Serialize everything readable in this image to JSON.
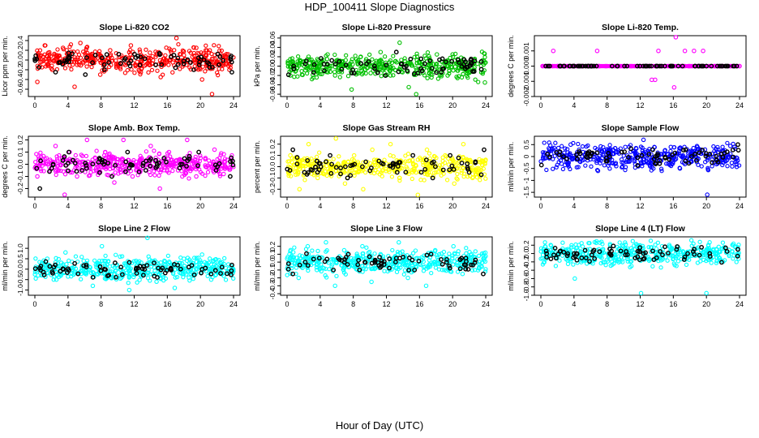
{
  "page": {
    "title": "HDP_100411  Slope Diagnostics",
    "xlabel": "Hour of Day (UTC)"
  },
  "chart_data": [
    {
      "type": "scatter",
      "title": "Slope Li-820 CO2",
      "ylabel": "Licor ppm per min.",
      "xlim": [
        0,
        24
      ],
      "xticks": [
        0,
        4,
        8,
        12,
        16,
        20,
        24
      ],
      "ylim": [
        -0.75,
        0.5
      ],
      "yticks": [
        -0.6,
        -0.4,
        -0.2,
        0.0,
        0.2,
        0.4
      ],
      "ytick_labels": [
        "-0.6",
        "-0.4",
        "-0.2",
        "0.0",
        "0.2",
        "0.4"
      ],
      "color": "#ff0000",
      "series": [
        {
          "color": "#ff0000",
          "x": [
            0.3,
            1.2,
            2.1,
            3.4,
            4.8,
            5.5,
            6.7,
            7.9,
            9.1,
            10.3,
            11.6,
            12.8,
            13.9,
            15.2,
            16.4,
            17.1,
            18.3,
            19.5,
            20.2,
            21.4,
            22.6,
            23.5
          ],
          "y": [
            -0.45,
            0.3,
            -0.2,
            0.25,
            -0.55,
            0.35,
            0.1,
            -0.3,
            0.2,
            -0.15,
            0.3,
            -0.25,
            0.15,
            -0.35,
            0.2,
            0.45,
            -0.1,
            0.25,
            -0.4,
            -0.7,
            0.1,
            -0.2
          ]
        },
        {
          "x": [
            0.5,
            2.5,
            4.2,
            6.1,
            8.4,
            10.8,
            12.2,
            14.6,
            16.8,
            19.2,
            21.1,
            23.8
          ],
          "y": [
            -0.15,
            -0.25,
            0.05,
            -0.3,
            -0.2,
            0.0,
            0.05,
            -0.1,
            0.1,
            -0.2,
            -0.15,
            -0.25
          ],
          "color": "#000000"
        }
      ]
    },
    {
      "type": "scatter",
      "title": "Slope Li-820 Pressure",
      "ylabel": "kPa per min.",
      "xlim": [
        0,
        24
      ],
      "xticks": [
        0,
        4,
        8,
        12,
        16,
        20,
        24
      ],
      "ylim": [
        -0.065,
        0.065
      ],
      "yticks": [
        -0.06,
        -0.04,
        -0.02,
        0.0,
        0.02,
        0.04,
        0.06
      ],
      "ytick_labels": [
        "-0.06",
        "-0.04",
        "-0.02",
        "0.00",
        "0.02",
        "0.04",
        "0.06"
      ],
      "color": "#00c000",
      "series": [
        {
          "color": "#00c000",
          "x": [
            0.4,
            1.3,
            2.6,
            3.7,
            4.9,
            5.8,
            6.6,
            7.8,
            8.9,
            10.1,
            11.3,
            12.5,
            13.6,
            14.7,
            15.6,
            16.9,
            18.1,
            19.4,
            20.6,
            21.8,
            23.0,
            23.9
          ],
          "y": [
            -0.02,
            0.01,
            0.02,
            -0.01,
            0.025,
            -0.02,
            0.01,
            -0.05,
            0.02,
            -0.015,
            0.03,
            -0.02,
            0.05,
            -0.045,
            -0.06,
            0.01,
            0.025,
            -0.02,
            0.015,
            -0.01,
            0.005,
            -0.035
          ]
        },
        {
          "x": [
            0.8,
            2.2,
            4.5,
            6.3,
            8.1,
            9.6,
            11.9,
            13.2,
            14.4,
            17.5,
            19.9,
            22.3
          ],
          "y": [
            0.0,
            0.005,
            -0.01,
            0.01,
            -0.015,
            0.005,
            -0.02,
            0.03,
            0.0,
            -0.005,
            0.01,
            0.005
          ],
          "color": "#000000"
        }
      ]
    },
    {
      "type": "scatter",
      "title": "Slope Li-820 Temp.",
      "ylabel": "degrees C per min.",
      "xlim": [
        0,
        24
      ],
      "xticks": [
        0,
        4,
        8,
        12,
        16,
        20,
        24
      ],
      "ylim": [
        -0.002,
        0.002
      ],
      "yticks": [
        -0.002,
        -0.001,
        0.0,
        0.001
      ],
      "ytick_labels": [
        "-0.002",
        "-0.001",
        "0.000",
        "0.001"
      ],
      "color": "#ff00ff",
      "series": [
        {
          "color": "#ff00ff",
          "x": [
            0.2,
            1.0,
            2.0,
            3.0,
            4.0,
            5.0,
            6.0,
            7.0,
            8.0,
            9.0,
            10.0,
            11.0,
            12.0,
            13.0,
            14.0,
            15.0,
            16.0,
            17.0,
            18.0,
            19.0,
            20.0,
            21.0,
            22.0,
            23.0,
            24.0,
            1.5,
            6.8,
            14.2,
            16.3,
            17.4,
            18.5,
            19.6,
            13.4,
            13.8,
            16.1
          ],
          "y": [
            0,
            0,
            0,
            0,
            0,
            0,
            0,
            0,
            0,
            0,
            0,
            0,
            0,
            0,
            0,
            0,
            0,
            0,
            0,
            0,
            0,
            0,
            0,
            0,
            0,
            0.001,
            0.001,
            0.001,
            0.0019,
            0.001,
            0.001,
            0.001,
            -0.0009,
            -0.0009,
            -0.0014
          ]
        },
        {
          "x": [
            0.6,
            2.4,
            4.6,
            6.4,
            8.6,
            10.4,
            12.6,
            14.6,
            16.6,
            18.6,
            20.6,
            22.6
          ],
          "y": [
            0,
            0,
            0,
            0,
            0,
            0,
            0,
            0,
            0,
            0,
            0,
            0
          ],
          "color": "#000000"
        }
      ]
    },
    {
      "type": "scatter",
      "title": "Slope Amb. Box Temp.",
      "ylabel": "degrees C per min.",
      "xlim": [
        0,
        24
      ],
      "xticks": [
        0,
        4,
        8,
        12,
        16,
        20,
        24
      ],
      "ylim": [
        -0.27,
        0.23
      ],
      "yticks": [
        -0.2,
        -0.1,
        0.0,
        0.1,
        0.2
      ],
      "ytick_labels": [
        "-0.2",
        "-0.1",
        "0.0",
        "0.1",
        "0.2"
      ],
      "color": "#ff00ff",
      "series": [
        {
          "color": "#ff00ff",
          "x": [
            0.3,
            1.4,
            2.5,
            3.6,
            4.2,
            5.1,
            6.3,
            7.4,
            8.5,
            9.6,
            10.7,
            11.8,
            12.9,
            14.0,
            15.1,
            16.2,
            17.3,
            18.4,
            19.5,
            20.6,
            21.7,
            22.8,
            23.7
          ],
          "y": [
            -0.1,
            0.05,
            0.15,
            -0.25,
            0.1,
            -0.1,
            0.2,
            -0.05,
            0.1,
            -0.15,
            0.2,
            -0.1,
            0.05,
            0.15,
            -0.2,
            0.1,
            -0.05,
            0.2,
            -0.1,
            0.05,
            0.12,
            -0.08,
            0.05
          ]
        },
        {
          "x": [
            0.6,
            2.2,
            4.1,
            5.7,
            7.8,
            9.3,
            11.2,
            13.4,
            15.6,
            17.8,
            19.8,
            21.9,
            23.6
          ],
          "y": [
            -0.2,
            0.0,
            0.1,
            -0.05,
            0.05,
            -0.1,
            0.1,
            -0.05,
            0.05,
            0.0,
            0.1,
            -0.05,
            -0.1
          ],
          "color": "#000000"
        }
      ]
    },
    {
      "type": "scatter",
      "title": "Slope Gas Stream RH",
      "ylabel": "percent per min.",
      "xlim": [
        0,
        24
      ],
      "xticks": [
        0,
        4,
        8,
        12,
        16,
        20,
        24
      ],
      "ylim": [
        -0.27,
        0.27
      ],
      "yticks": [
        -0.2,
        -0.1,
        0.0,
        0.1,
        0.2
      ],
      "ytick_labels": [
        "-0.2",
        "-0.1",
        "0.0",
        "0.1",
        "0.2"
      ],
      "color": "#ffff00",
      "series": [
        {
          "color": "#ffff00",
          "x": [
            0.4,
            1.5,
            2.6,
            3.7,
            4.8,
            5.9,
            7.0,
            8.1,
            9.2,
            10.3,
            11.4,
            12.5,
            13.6,
            14.7,
            15.8,
            16.9,
            18.0,
            19.1,
            20.2,
            21.3,
            22.4,
            23.5
          ],
          "y": [
            0.1,
            -0.2,
            0.2,
            -0.1,
            0.05,
            0.25,
            -0.15,
            0.1,
            -0.2,
            0.15,
            -0.05,
            0.2,
            -0.1,
            0.05,
            -0.25,
            0.15,
            -0.05,
            0.1,
            -0.15,
            0.2,
            -0.1,
            0.05
          ]
        },
        {
          "x": [
            0.7,
            2.1,
            3.6,
            5.2,
            7.3,
            9.1,
            11.1,
            13.3,
            15.2,
            17.6,
            19.7,
            22.0,
            23.8
          ],
          "y": [
            0.15,
            -0.05,
            0.05,
            0.1,
            -0.1,
            0.0,
            0.05,
            -0.05,
            0.1,
            -0.1,
            0.1,
            -0.05,
            0.15
          ],
          "color": "#000000"
        }
      ]
    },
    {
      "type": "scatter",
      "title": "Slope Sample Flow",
      "ylabel": "ml/min per min.",
      "xlim": [
        0,
        24
      ],
      "xticks": [
        0,
        4,
        8,
        12,
        16,
        20,
        24
      ],
      "ylim": [
        -1.7,
        0.85
      ],
      "yticks": [
        -1.5,
        -1.0,
        -0.5,
        0.0,
        0.5
      ],
      "ytick_labels": [
        "-1.5",
        "-1",
        "-0.5",
        "0",
        "0.5"
      ],
      "color": "#0000ff",
      "series": [
        {
          "color": "#0000ff",
          "x": [
            0.3,
            1.4,
            2.5,
            3.6,
            4.7,
            5.8,
            6.9,
            8.0,
            9.1,
            10.2,
            11.3,
            12.4,
            13.5,
            14.6,
            15.7,
            16.8,
            17.9,
            19.0,
            20.1,
            21.2,
            22.3,
            23.4
          ],
          "y": [
            -0.1,
            0.3,
            -0.3,
            0.5,
            -0.2,
            0.2,
            -0.6,
            0.3,
            -0.4,
            0.4,
            -0.2,
            0.7,
            -0.3,
            0.1,
            0.4,
            -0.5,
            0.2,
            -0.1,
            -1.6,
            0.3,
            -0.2,
            0.4
          ]
        },
        {
          "x": [
            0.8,
            2.3,
            4.4,
            6.2,
            8.3,
            10.1,
            12.2,
            14.1,
            16.2,
            18.2,
            20.4,
            22.5,
            23.8
          ],
          "y": [
            0.1,
            0.2,
            -0.1,
            0.15,
            0.0,
            0.2,
            0.05,
            0.1,
            0.15,
            0.0,
            0.1,
            0.2,
            0.5
          ],
          "color": "#000000"
        }
      ]
    },
    {
      "type": "scatter",
      "title": "Slope Line 2 Flow",
      "ylabel": "ml/min per min.",
      "xlim": [
        0,
        24
      ],
      "xticks": [
        0,
        4,
        8,
        12,
        16,
        20,
        24
      ],
      "ylim": [
        -1.25,
        1.55
      ],
      "yticks": [
        -1.0,
        -0.5,
        0.0,
        0.5,
        1.0
      ],
      "ytick_labels": [
        "-1.0",
        "-0.5",
        "0.0",
        "0.5",
        "1.0"
      ],
      "color": "#00ffff",
      "series": [
        {
          "color": "#00ffff",
          "x": [
            0.4,
            1.5,
            2.6,
            3.7,
            4.8,
            5.9,
            7.0,
            8.1,
            9.2,
            10.3,
            11.4,
            12.5,
            13.6,
            14.7,
            15.8,
            16.9,
            18.0,
            19.1,
            20.2,
            21.3,
            22.4,
            23.5
          ],
          "y": [
            -0.3,
            0.5,
            -0.5,
            0.8,
            -0.2,
            0.4,
            -0.8,
            1.1,
            -0.4,
            0.6,
            -1.0,
            0.3,
            1.5,
            -0.6,
            0.2,
            -0.9,
            0.5,
            -0.3,
            0.7,
            -0.5,
            0.3,
            -0.2
          ]
        },
        {
          "x": [
            0.6,
            2.3,
            4.1,
            6.2,
            8.4,
            10.4,
            12.3,
            14.4,
            16.4,
            18.6,
            20.6,
            22.6,
            23.8
          ],
          "y": [
            0.05,
            0.1,
            -0.05,
            0.2,
            0.0,
            0.1,
            -0.2,
            0.3,
            0.0,
            0.1,
            0.05,
            0.1,
            0.2
          ],
          "color": "#000000"
        }
      ]
    },
    {
      "type": "scatter",
      "title": "Slope Line 3 Flow",
      "ylabel": "ml/min per min.",
      "xlim": [
        0,
        24
      ],
      "xticks": [
        0,
        4,
        8,
        12,
        16,
        20,
        24
      ],
      "ylim": [
        -0.42,
        0.32
      ],
      "yticks": [
        -0.4,
        -0.3,
        -0.2,
        -0.1,
        0.0,
        0.1,
        0.2
      ],
      "ytick_labels": [
        "-0.4",
        "-0.3",
        "-0.2",
        "-0.1",
        "0.0",
        "0.1",
        "0.2"
      ],
      "color": "#00ffff",
      "series": [
        {
          "color": "#00ffff",
          "x": [
            0.3,
            1.4,
            2.5,
            3.6,
            4.7,
            5.8,
            6.9,
            8.0,
            9.1,
            10.2,
            11.3,
            12.4,
            13.5,
            14.6,
            15.7,
            16.8,
            17.9,
            19.0,
            20.1,
            21.2,
            22.3,
            23.4
          ],
          "y": [
            0.1,
            -0.2,
            0.2,
            -0.1,
            0.25,
            -0.3,
            0.15,
            -0.05,
            0.2,
            -0.25,
            0.1,
            -0.1,
            0.25,
            -0.2,
            0.05,
            -0.3,
            0.15,
            -0.1,
            0.2,
            -0.15,
            0.1,
            -0.05
          ]
        },
        {
          "x": [
            0.7,
            2.2,
            3.9,
            5.6,
            7.4,
            9.4,
            11.4,
            13.2,
            15.4,
            17.4,
            19.6,
            21.6,
            23.7
          ],
          "y": [
            -0.15,
            0.0,
            0.05,
            -0.1,
            0.1,
            0.0,
            -0.05,
            0.05,
            -0.1,
            0.1,
            -0.05,
            0.05,
            -0.15
          ],
          "color": "#000000"
        }
      ]
    },
    {
      "type": "scatter",
      "title": "Slope Line 4 (LT) Flow",
      "ylabel": "ml/min per min.",
      "xlim": [
        0,
        24
      ],
      "xticks": [
        0,
        4,
        8,
        12,
        16,
        20,
        24
      ],
      "ylim": [
        -1.0,
        0.4
      ],
      "yticks": [
        -1.0,
        -0.8,
        -0.6,
        -0.4,
        -0.2,
        0.0,
        0.2
      ],
      "ytick_labels": [
        "-1.0",
        "-0.8",
        "-0.6",
        "-0.4",
        "-0.2",
        "0.0",
        "0.2"
      ],
      "color": "#00ffff",
      "series": [
        {
          "color": "#00ffff",
          "x": [
            0.4,
            1.5,
            2.6,
            3.7,
            4.1,
            4.8,
            5.9,
            7.0,
            8.1,
            9.2,
            10.3,
            11.4,
            12.1,
            12.5,
            13.6,
            14.7,
            15.8,
            16.9,
            18.0,
            19.1,
            20.0,
            20.2,
            21.3,
            22.4,
            23.5
          ],
          "y": [
            0.05,
            0.1,
            -0.05,
            0.0,
            -0.6,
            0.05,
            -0.05,
            0.1,
            0.0,
            0.05,
            -0.05,
            0.1,
            -0.95,
            0.0,
            0.05,
            -0.05,
            0.1,
            0.0,
            0.05,
            -0.05,
            -0.95,
            0.1,
            0.0,
            0.05,
            0.15
          ]
        },
        {
          "x": [
            0.7,
            2.3,
            4.3,
            6.3,
            8.3,
            10.3,
            12.4,
            14.4,
            16.4,
            18.4,
            20.4,
            22.5,
            23.8
          ],
          "y": [
            0.0,
            0.05,
            0.0,
            0.05,
            0.0,
            0.05,
            0.0,
            0.05,
            0.1,
            0.05,
            0.0,
            0.05,
            0.1
          ],
          "color": "#000000"
        }
      ]
    }
  ]
}
